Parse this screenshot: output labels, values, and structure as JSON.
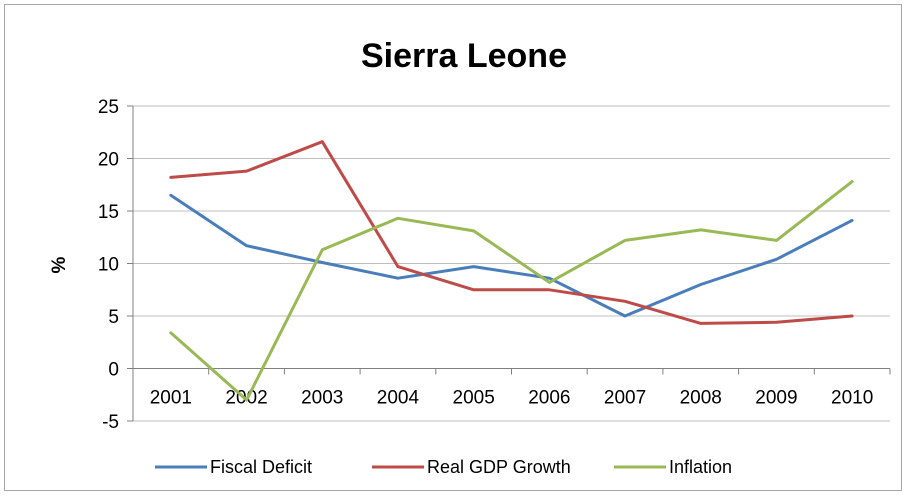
{
  "chart_data": {
    "type": "line",
    "title": "Sierra Leone",
    "xlabel": "",
    "ylabel": "%",
    "ylim": [
      -5,
      25
    ],
    "yticks": [
      25,
      20,
      15,
      10,
      5,
      0,
      -5
    ],
    "ytick_labels": [
      "25",
      "20",
      "15",
      "10",
      "5",
      "0",
      "-5"
    ],
    "grid": true,
    "legend": "bottom",
    "categories": [
      "2001",
      "2002",
      "2003",
      "2004",
      "2005",
      "2006",
      "2007",
      "2008",
      "2009",
      "2010"
    ],
    "series": [
      {
        "name": "Fiscal Deficit",
        "color": "#4a7ebb",
        "values": [
          16.5,
          11.7,
          10.1,
          8.6,
          9.7,
          8.6,
          5.0,
          8.0,
          10.4,
          14.1
        ]
      },
      {
        "name": "Real GDP Growth",
        "color": "#be4b48",
        "values": [
          18.2,
          18.8,
          21.6,
          9.7,
          7.5,
          7.5,
          6.4,
          4.3,
          4.4,
          5.0
        ]
      },
      {
        "name": "Inflation",
        "color": "#98b954",
        "values": [
          3.4,
          -3.0,
          11.3,
          14.3,
          13.1,
          8.2,
          12.2,
          13.2,
          12.2,
          17.8
        ]
      }
    ]
  }
}
